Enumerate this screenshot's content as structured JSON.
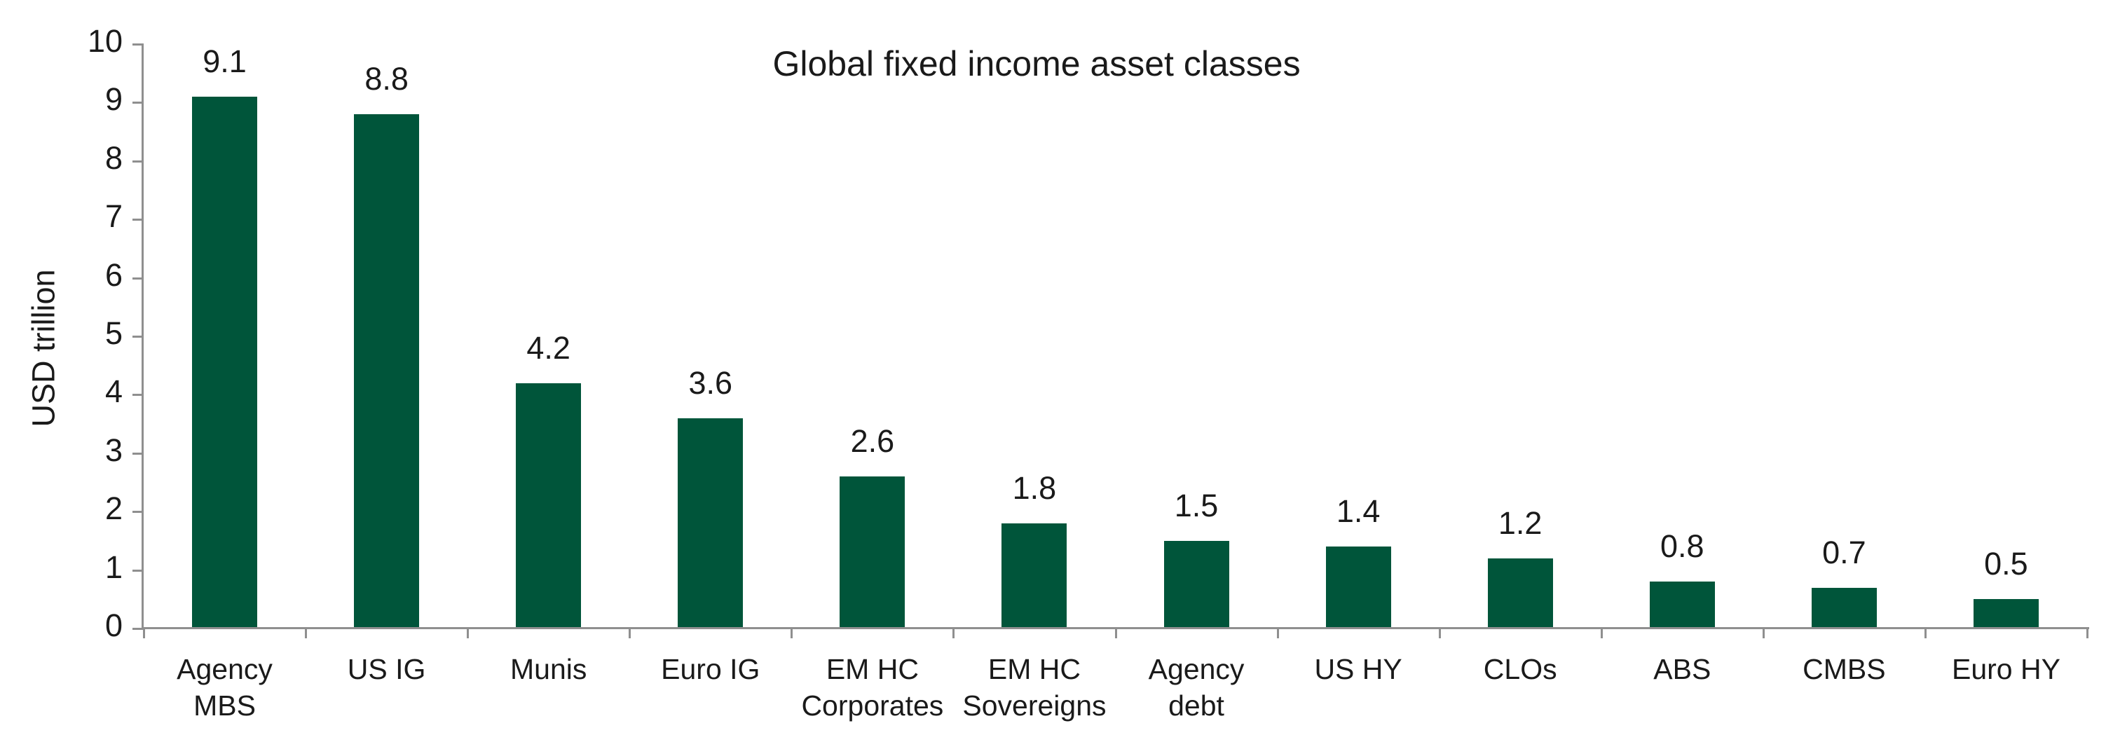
{
  "chart_data": {
    "type": "bar",
    "title": "Global fixed income asset classes",
    "xlabel": "",
    "ylabel": "USD trillion",
    "ylim": [
      0,
      10
    ],
    "ytick_labels": [
      "0",
      "1",
      "2",
      "3",
      "4",
      "5",
      "6",
      "7",
      "8",
      "9",
      "10"
    ],
    "grid": false,
    "legend": "none",
    "categories": [
      "Agency MBS",
      "US IG",
      "Munis",
      "Euro IG",
      "EM HC Corporates",
      "EM HC Sovereigns",
      "Agency debt",
      "US HY",
      "CLOs",
      "ABS",
      "CMBS",
      "Euro HY"
    ],
    "category_label_lines": [
      [
        "Agency",
        "MBS"
      ],
      [
        "US IG"
      ],
      [
        "Munis"
      ],
      [
        "Euro IG"
      ],
      [
        "EM HC",
        "Corporates"
      ],
      [
        "EM HC",
        "Sovereigns"
      ],
      [
        "Agency",
        "debt"
      ],
      [
        "US HY"
      ],
      [
        "CLOs"
      ],
      [
        "ABS"
      ],
      [
        "CMBS"
      ],
      [
        "Euro HY"
      ]
    ],
    "values": [
      9.1,
      8.8,
      4.2,
      3.6,
      2.6,
      1.8,
      1.5,
      1.4,
      1.2,
      0.8,
      0.7,
      0.5
    ],
    "value_labels": [
      "9.1",
      "8.8",
      "4.2",
      "3.6",
      "2.6",
      "1.8",
      "1.5",
      "1.4",
      "1.2",
      "0.8",
      "0.7",
      "0.5"
    ],
    "colors": {
      "bar": "#00553a",
      "axis": "#8f8f8f",
      "text": "#1a1a1a",
      "background": "#ffffff"
    }
  }
}
